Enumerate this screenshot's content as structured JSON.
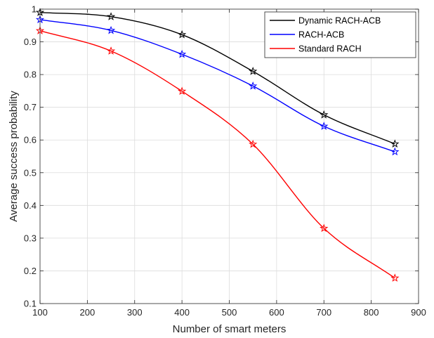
{
  "chart_data": {
    "type": "line",
    "xlabel": "Number of smart meters",
    "ylabel": "Average success probability",
    "xlim": [
      100,
      900
    ],
    "ylim": [
      0.1,
      1
    ],
    "xticks": [
      100,
      200,
      300,
      400,
      500,
      600,
      700,
      800,
      900
    ],
    "yticks": [
      0.1,
      0.2,
      0.3,
      0.4,
      0.5,
      0.6,
      0.7,
      0.8,
      0.9,
      1
    ],
    "ytick_labels": [
      "0.1",
      "0.2",
      "0.3",
      "0.4",
      "0.5",
      "0.6",
      "0.7",
      "0.8",
      "0.9",
      "1"
    ],
    "grid": true,
    "legend_position": "top-right",
    "marker": "pentagram",
    "x": [
      100,
      250,
      400,
      550,
      700,
      850
    ],
    "series": [
      {
        "name": "Dynamic RACH-ACB",
        "color": "#000000",
        "values": [
          0.99,
          0.977,
          0.922,
          0.81,
          0.677,
          0.588
        ]
      },
      {
        "name": "RACH-ACB",
        "color": "#0000ff",
        "values": [
          0.968,
          0.935,
          0.862,
          0.765,
          0.642,
          0.564
        ]
      },
      {
        "name": "Standard RACH",
        "color": "#ff0000",
        "values": [
          0.934,
          0.872,
          0.749,
          0.587,
          0.33,
          0.178
        ]
      }
    ]
  }
}
